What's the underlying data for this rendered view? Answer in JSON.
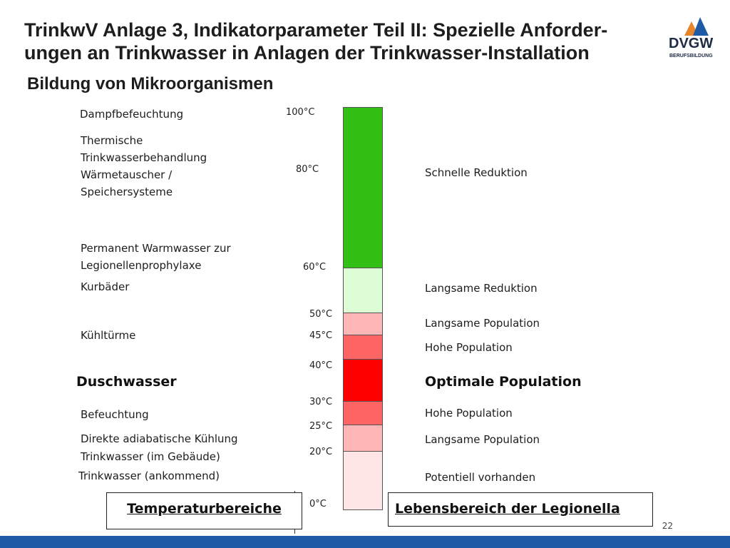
{
  "slide": {
    "title": "TrinkwV Anlage 3, Indikatorparameter Teil II: Spezielle Anforder-ungen an Trinkwasser in Anlagen der Trinkwasser-Installation",
    "subtitle": "Bildung von Mikroorganismen",
    "page_number": "22"
  },
  "logo": {
    "text": "DVGW",
    "subtext": "BERUFSBILDUNG",
    "colors": [
      "#e8842a",
      "#1f5aa6",
      "#ffffff"
    ]
  },
  "temperatures": [
    "100°C",
    "80°C",
    "60°C",
    "50°C",
    "45°C",
    "40°C",
    "30°C",
    "25°C",
    "20°C",
    "0°C"
  ],
  "left_labels": {
    "dampf": "Dampfbefeuchtung",
    "thermisch": "Thermische Trinkwasserbehandlung Wärmetauscher / Speichersysteme",
    "permanent": "Permanent Warmwasser zur Legionellenprophylaxe",
    "kurbaeder": "Kurbäder",
    "kuehltuerme": "Kühltürme",
    "duschwasser": "Duschwasser",
    "befeuchtung": "Befeuchtung",
    "adiabatisch": "Direkte adiabatische Kühlung",
    "gebaeude": "Trinkwasser (im Gebäude)",
    "ankommend": "Trinkwasser (ankommend)"
  },
  "right_labels": {
    "schnell": "Schnelle Reduktion",
    "langsam_red": "Langsame Reduktion",
    "langsam_pop1": "Langsame Population",
    "hohe_pop1": "Hohe Population",
    "optimal": "Optimale Population",
    "hohe_pop2": "Hohe Population",
    "langsam_pop2": "Langsame Population",
    "potentiell": "Potentiell vorhanden"
  },
  "boxes": {
    "left": "Temperaturbereiche",
    "right": "Lebensbereich der Legionella"
  },
  "bar_colors": {
    "dark_green": "#33c014",
    "light_green": "#ddfdd6",
    "light_pink": "#ffb6b6",
    "medium_red": "#ff6464",
    "red": "#ff0000",
    "very_light_pink": "#ffe6e6"
  }
}
